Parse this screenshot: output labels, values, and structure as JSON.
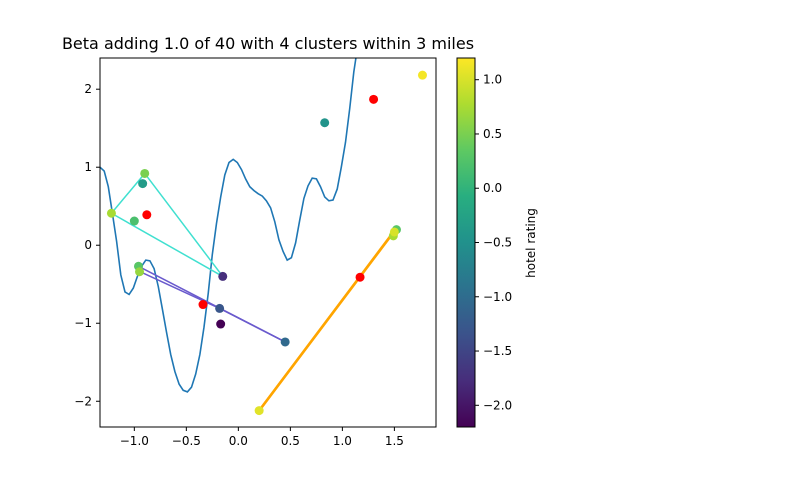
{
  "chart_data": {
    "type": "scatter",
    "title": "Beta adding 1.0 of 40 with 4 clusters within 3 miles",
    "xlabel": "",
    "ylabel": "",
    "xlim": [
      -1.33,
      1.9
    ],
    "ylim": [
      -2.33,
      2.4
    ],
    "xticks": [
      -1.0,
      -0.5,
      0.0,
      0.5,
      1.0,
      1.5
    ],
    "xtick_labels": [
      "−1.0",
      "−0.5",
      "0.0",
      "0.5",
      "1.0",
      "1.5"
    ],
    "yticks": [
      -2,
      -1,
      0,
      1,
      2
    ],
    "ytick_labels": [
      "−2",
      "−1",
      "0",
      "1",
      "2"
    ],
    "grid": false,
    "colorbar": {
      "label": "hotel rating",
      "range": [
        -2.2,
        1.2
      ],
      "colormap": "viridis",
      "ticks": [
        1.0,
        0.5,
        0.0,
        -0.5,
        -1.0,
        -1.5,
        -2.0
      ],
      "tick_labels": [
        "1.0",
        "0.5",
        "0.0",
        "−0.5",
        "−1.0",
        "−1.5",
        "−2.0"
      ]
    },
    "curve": {
      "color": "#1f77b4",
      "points": [
        [
          -1.33,
          1.0
        ],
        [
          -1.29,
          0.95
        ],
        [
          -1.25,
          0.75
        ],
        [
          -1.21,
          0.4
        ],
        [
          -1.17,
          0.05
        ],
        [
          -1.13,
          -0.38
        ],
        [
          -1.09,
          -0.6
        ],
        [
          -1.05,
          -0.63
        ],
        [
          -1.01,
          -0.55
        ],
        [
          -0.97,
          -0.4
        ],
        [
          -0.93,
          -0.27
        ],
        [
          -0.89,
          -0.19
        ],
        [
          -0.85,
          -0.2
        ],
        [
          -0.81,
          -0.3
        ],
        [
          -0.77,
          -0.53
        ],
        [
          -0.73,
          -0.82
        ],
        [
          -0.69,
          -1.12
        ],
        [
          -0.65,
          -1.4
        ],
        [
          -0.61,
          -1.62
        ],
        [
          -0.57,
          -1.78
        ],
        [
          -0.53,
          -1.86
        ],
        [
          -0.49,
          -1.88
        ],
        [
          -0.45,
          -1.82
        ],
        [
          -0.41,
          -1.65
        ],
        [
          -0.37,
          -1.4
        ],
        [
          -0.33,
          -1.05
        ],
        [
          -0.29,
          -0.62
        ],
        [
          -0.25,
          -0.12
        ],
        [
          -0.21,
          0.28
        ],
        [
          -0.17,
          0.62
        ],
        [
          -0.13,
          0.9
        ],
        [
          -0.09,
          1.06
        ],
        [
          -0.05,
          1.1
        ],
        [
          -0.01,
          1.06
        ],
        [
          0.03,
          0.97
        ],
        [
          0.07,
          0.85
        ],
        [
          0.11,
          0.75
        ],
        [
          0.15,
          0.7
        ],
        [
          0.19,
          0.66
        ],
        [
          0.23,
          0.63
        ],
        [
          0.27,
          0.57
        ],
        [
          0.31,
          0.48
        ],
        [
          0.35,
          0.3
        ],
        [
          0.39,
          0.07
        ],
        [
          0.43,
          -0.08
        ],
        [
          0.47,
          -0.19
        ],
        [
          0.51,
          -0.16
        ],
        [
          0.55,
          0.03
        ],
        [
          0.59,
          0.32
        ],
        [
          0.63,
          0.6
        ],
        [
          0.67,
          0.76
        ],
        [
          0.71,
          0.86
        ],
        [
          0.75,
          0.85
        ],
        [
          0.79,
          0.75
        ],
        [
          0.83,
          0.62
        ],
        [
          0.87,
          0.57
        ],
        [
          0.91,
          0.58
        ],
        [
          0.95,
          0.72
        ],
        [
          0.99,
          1.0
        ],
        [
          1.03,
          1.32
        ],
        [
          1.07,
          1.75
        ],
        [
          1.11,
          2.22
        ],
        [
          1.13,
          2.4
        ]
      ]
    },
    "clusters": [
      {
        "color": "#40e0d0",
        "width": 1.5,
        "edges": [
          [
            [
              -1.22,
              0.41
            ],
            [
              -0.9,
              0.92
            ]
          ],
          [
            [
              -0.9,
              0.92
            ],
            [
              -0.15,
              -0.4
            ]
          ],
          [
            [
              -1.22,
              0.41
            ],
            [
              -0.15,
              -0.4
            ]
          ]
        ]
      },
      {
        "color": "#6a5acd",
        "width": 1.5,
        "edges": [
          [
            [
              -0.96,
              -0.27
            ],
            [
              0.45,
              -1.24
            ]
          ],
          [
            [
              -0.96,
              -0.33
            ],
            [
              -0.18,
              -0.81
            ]
          ],
          [
            [
              -0.18,
              -0.81
            ],
            [
              0.45,
              -1.24
            ]
          ]
        ]
      },
      {
        "color": "#ffa500",
        "width": 2.5,
        "edges": [
          [
            [
              0.2,
              -2.12
            ],
            [
              1.5,
              0.18
            ]
          ],
          [
            [
              0.2,
              -2.12
            ],
            [
              1.48,
              0.15
            ]
          ]
        ]
      }
    ],
    "points": [
      {
        "x": -0.88,
        "y": 0.39,
        "color": "#ff0000"
      },
      {
        "x": -0.34,
        "y": -0.76,
        "color": "#ff0000"
      },
      {
        "x": 1.17,
        "y": -0.41,
        "color": "#ff0000"
      },
      {
        "x": 1.3,
        "y": 1.87,
        "color": "#ff0000"
      },
      {
        "x": -1.22,
        "y": 0.41,
        "rating": 0.75
      },
      {
        "x": -0.9,
        "y": 0.92,
        "rating": 0.5
      },
      {
        "x": -1.0,
        "y": 0.31,
        "rating": 0.2
      },
      {
        "x": -0.92,
        "y": 0.79,
        "rating": -0.35
      },
      {
        "x": -0.15,
        "y": -0.4,
        "rating": -1.75
      },
      {
        "x": -0.96,
        "y": -0.27,
        "rating": 0.3
      },
      {
        "x": -0.95,
        "y": -0.34,
        "rating": 0.65
      },
      {
        "x": -0.18,
        "y": -0.81,
        "rating": -1.3
      },
      {
        "x": -0.17,
        "y": -1.01,
        "rating": -2.2
      },
      {
        "x": 0.45,
        "y": -1.24,
        "rating": -1.05
      },
      {
        "x": 0.2,
        "y": -2.12,
        "rating": 1.05
      },
      {
        "x": 1.52,
        "y": 0.2,
        "rating": 0.3
      },
      {
        "x": 1.49,
        "y": 0.12,
        "rating": 0.75
      },
      {
        "x": 1.5,
        "y": 0.17,
        "rating": 1.0
      },
      {
        "x": 0.83,
        "y": 1.57,
        "rating": -0.45
      },
      {
        "x": 1.77,
        "y": 2.18,
        "rating": 1.15
      }
    ]
  }
}
